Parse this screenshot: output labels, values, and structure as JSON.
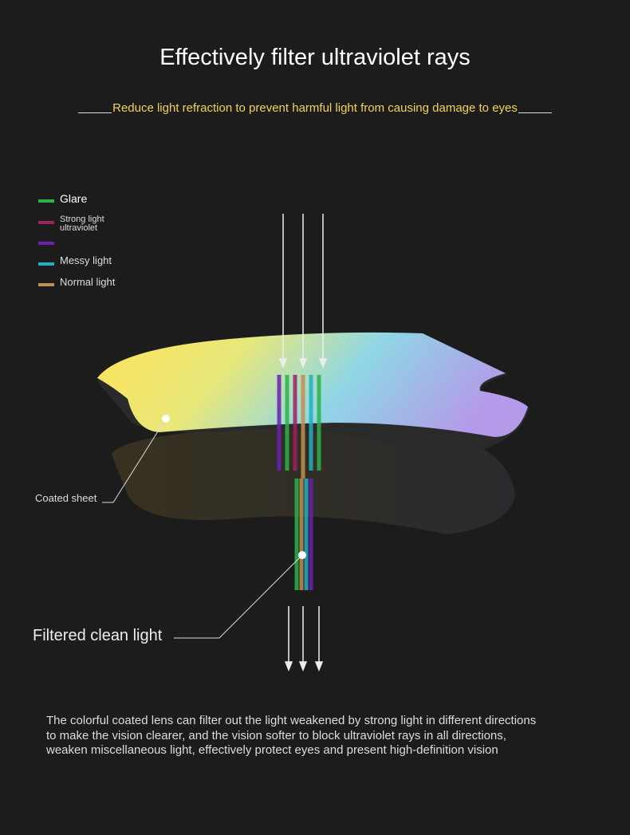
{
  "header": {
    "title": "Effectively filter ultraviolet rays",
    "subtitle": "Reduce light refraction to prevent harmful light from causing damage to eyes"
  },
  "legend": {
    "items": [
      {
        "label": [
          "Glare"
        ]
      },
      {
        "label": [
          "Strong light",
          "ultraviolet"
        ]
      },
      {
        "label": [
          "Messy light"
        ]
      },
      {
        "label": [
          "Normal light"
        ]
      }
    ]
  },
  "callouts": {
    "coated": "Coated sheet",
    "filtered": "Filtered clean light"
  },
  "description": {
    "lines": [
      "The colorful coated lens can filter out the light weakened by strong light in different directions",
      "to make the vision clearer, and the vision softer to block ultraviolet rays in all directions,",
      "weaken miscellaneous light, effectively protect eyes and present high-definition vision"
    ]
  }
}
